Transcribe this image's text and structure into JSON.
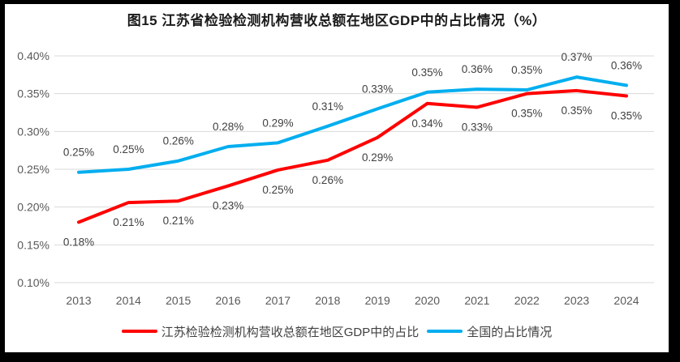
{
  "title": "图15  江苏省检验检测机构营收总额在地区GDP中的占比情况（%）",
  "colors": {
    "red": "#FF0000",
    "blue": "#00AEEF",
    "grid": "#D9D9D9",
    "axis_text": "#595959",
    "data_label_text": "#404040",
    "frame": "#000000",
    "background": "#FFFFFF"
  },
  "legend": [
    {
      "label": "江苏检验检测机构营收总额在地区GDP中的占比"
    },
    {
      "label": "全国的占比情况"
    }
  ],
  "chart_data": {
    "type": "line",
    "title": "图15 江苏省检验检测机构营收总额在地区GDP中的占比情况（%）",
    "xlabel": "",
    "ylabel": "",
    "grid": true,
    "legend_position": "bottom",
    "categories": [
      "2013",
      "2014",
      "2015",
      "2016",
      "2017",
      "2018",
      "2019",
      "2020",
      "2021",
      "2022",
      "2023",
      "2024"
    ],
    "yaxis": {
      "min": 0.1,
      "max": 0.4,
      "step": 0.05,
      "unit": "%",
      "ticks": [
        {
          "value": 0.4,
          "label": "0.40%"
        },
        {
          "value": 0.35,
          "label": "0.35%"
        },
        {
          "value": 0.3,
          "label": "0.30%"
        },
        {
          "value": 0.25,
          "label": "0.25%"
        },
        {
          "value": 0.2,
          "label": "0.20%"
        },
        {
          "value": 0.15,
          "label": "0.15%"
        },
        {
          "value": 0.1,
          "label": "0.10%"
        }
      ]
    },
    "series": [
      {
        "id": "jiangsu",
        "name": "江苏检验检测机构营收总额在地区GDP中的占比",
        "color": "#FF0000",
        "label_side": "below",
        "values": [
          0.18,
          0.21,
          0.21,
          0.23,
          0.25,
          0.26,
          0.29,
          0.34,
          0.33,
          0.35,
          0.35,
          0.35
        ],
        "labels": [
          "0.18%",
          "0.21%",
          "0.21%",
          "0.23%",
          "0.25%",
          "0.26%",
          "0.29%",
          "0.34%",
          "0.33%",
          "0.35%",
          "0.35%",
          "0.35%"
        ],
        "plot_values": [
          0.18,
          0.206,
          0.208,
          0.228,
          0.249,
          0.262,
          0.292,
          0.337,
          0.332,
          0.35,
          0.354,
          0.347
        ]
      },
      {
        "id": "national",
        "name": "全国的占比情况",
        "color": "#00AEEF",
        "label_side": "above",
        "values": [
          0.25,
          0.25,
          0.26,
          0.28,
          0.29,
          0.31,
          0.33,
          0.35,
          0.36,
          0.35,
          0.37,
          0.36
        ],
        "labels": [
          "0.25%",
          "0.25%",
          "0.26%",
          "0.28%",
          "0.29%",
          "0.31%",
          "0.33%",
          "0.35%",
          "0.36%",
          "0.35%",
          "0.37%",
          "0.36%"
        ],
        "plot_values": [
          0.246,
          0.25,
          0.261,
          0.28,
          0.285,
          0.307,
          0.33,
          0.352,
          0.356,
          0.355,
          0.372,
          0.361
        ]
      }
    ]
  }
}
